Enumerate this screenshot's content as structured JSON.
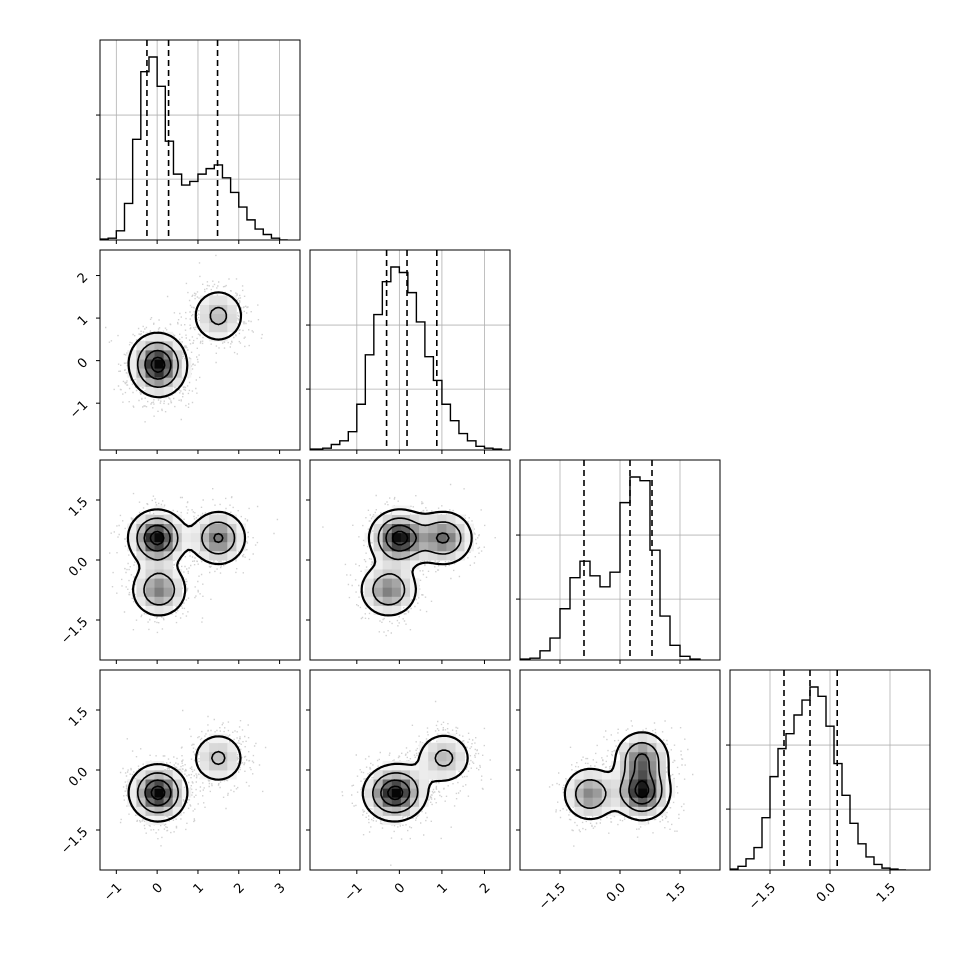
{
  "chart_data": {
    "type": "corner",
    "n_params": 4,
    "params": [
      {
        "index": 0,
        "range": [
          -1.4,
          3.5
        ],
        "quantiles": [
          -0.25,
          0.28,
          1.48
        ],
        "ticks": [
          -1,
          0,
          1,
          2,
          3
        ],
        "tick_labels": [
          "−1",
          "0",
          "1",
          "2",
          "3"
        ]
      },
      {
        "index": 1,
        "range": [
          -2.1,
          2.6
        ],
        "quantiles": [
          -0.3,
          0.18,
          0.88
        ],
        "ticks": [
          -1,
          0,
          1,
          2
        ],
        "tick_labels": [
          "−1",
          "0",
          "1",
          "2"
        ]
      },
      {
        "index": 2,
        "range": [
          -2.5,
          2.5
        ],
        "quantiles": [
          -0.9,
          0.25,
          0.8
        ],
        "ticks": [
          -1.5,
          0.0,
          1.5
        ],
        "tick_labels": [
          "−1.5",
          "0.0",
          "1.5"
        ]
      },
      {
        "index": 3,
        "range": [
          -2.5,
          2.5
        ],
        "quantiles": [
          -1.15,
          -0.5,
          0.18
        ],
        "ticks": [
          -1.5,
          0.0,
          1.5
        ],
        "tick_labels": [
          "−1.5",
          "0.0",
          "1.5"
        ]
      }
    ],
    "histograms": [
      {
        "param": 0,
        "bin_edges": [
          -1.4,
          -1.2,
          -1.0,
          -0.8,
          -0.6,
          -0.4,
          -0.2,
          0.0,
          0.2,
          0.4,
          0.6,
          0.8,
          1.0,
          1.2,
          1.4,
          1.6,
          1.8,
          2.0,
          2.2,
          2.4,
          2.6,
          2.8,
          3.0,
          3.2
        ],
        "counts": [
          0.5,
          1,
          5,
          20,
          55,
          92,
          100,
          84,
          54,
          36,
          30,
          32,
          36,
          39,
          41,
          34,
          26,
          18,
          11,
          6,
          3,
          1,
          0
        ]
      },
      {
        "param": 1,
        "bin_edges": [
          -2.1,
          -1.8,
          -1.6,
          -1.4,
          -1.2,
          -1.0,
          -0.8,
          -0.6,
          -0.4,
          -0.2,
          0.0,
          0.2,
          0.4,
          0.6,
          0.8,
          1.0,
          1.2,
          1.4,
          1.6,
          1.8,
          2.0,
          2.2,
          2.4
        ],
        "counts": [
          0.5,
          1,
          3,
          5,
          10,
          25,
          52,
          74,
          92,
          100,
          97,
          86,
          70,
          51,
          38,
          25,
          16,
          9,
          5,
          2,
          1,
          0.5
        ]
      },
      {
        "param": 2,
        "bin_edges": [
          -2.5,
          -2.25,
          -2.0,
          -1.75,
          -1.5,
          -1.25,
          -1.0,
          -0.75,
          -0.5,
          -0.25,
          0.0,
          0.25,
          0.5,
          0.75,
          1.0,
          1.25,
          1.5,
          1.75,
          2.0
        ],
        "counts": [
          0.5,
          1,
          5,
          12,
          28,
          45,
          54,
          46,
          40,
          48,
          86,
          100,
          98,
          60,
          24,
          8,
          2,
          0.5
        ]
      },
      {
        "param": 3,
        "bin_edges": [
          -2.5,
          -2.3,
          -2.1,
          -1.9,
          -1.7,
          -1.5,
          -1.3,
          -1.1,
          -0.9,
          -0.7,
          -0.5,
          -0.3,
          -0.1,
          0.1,
          0.3,
          0.5,
          0.7,
          0.9,
          1.1,
          1.3,
          1.5,
          1.7,
          1.9
        ],
        "counts": [
          0.5,
          2,
          6,
          12,
          28,
          50,
          65,
          73,
          83,
          91,
          98,
          93,
          77,
          57,
          40,
          25,
          14,
          7,
          3,
          1,
          0.5,
          0
        ]
      }
    ],
    "mixture": {
      "components": [
        {
          "weight": 0.42,
          "mean": [
            0.0,
            0.0,
            0.55,
            -0.55
          ]
        },
        {
          "weight": 0.3,
          "mean": [
            1.5,
            1.05,
            0.55,
            0.3
          ]
        },
        {
          "weight": 0.28,
          "mean": [
            0.05,
            -0.25,
            -0.75,
            -0.6
          ]
        }
      ],
      "sigma": 0.36
    },
    "grid": true,
    "quantile_line_style": "dashed"
  }
}
